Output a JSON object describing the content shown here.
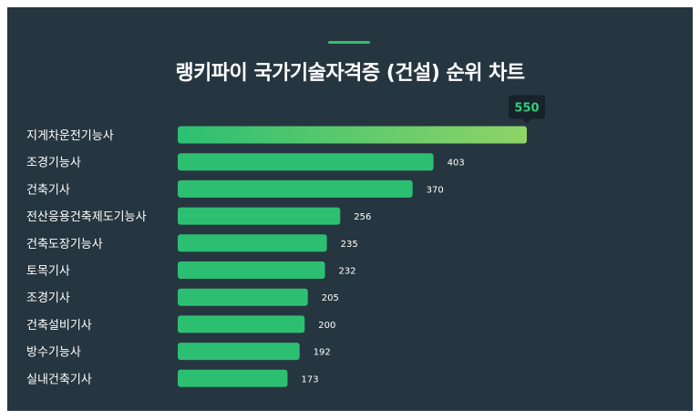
{
  "chart_data": {
    "type": "bar",
    "orientation": "horizontal",
    "title": "랭키파이 국가기술자격증 (건설) 순위 차트",
    "categories": [
      "지게차운전기능사",
      "조경기능사",
      "건축기사",
      "전산응용건축제도기능사",
      "건축도장기능사",
      "토목기사",
      "조경기사",
      "건축설비기사",
      "방수기능사",
      "실내건축기사"
    ],
    "values": [
      550,
      403,
      370,
      256,
      235,
      232,
      205,
      200,
      192,
      173
    ],
    "value_labels": [
      "550",
      "403",
      "370",
      "256",
      "235",
      "232",
      "205",
      "200",
      "192",
      "173"
    ],
    "highlight": {
      "index": 0,
      "label": "550"
    },
    "xlim": [
      0,
      550
    ],
    "grid": false,
    "legend": "none"
  },
  "colors": {
    "background": "#263640",
    "bar": "#2cbf72",
    "bar_highlight_start": "#2cbf72",
    "bar_highlight_end": "#8fd467",
    "accent": "#2fbf71",
    "tooltip_bg": "#17222a",
    "tooltip_text": "#2fd07a",
    "text": "#ffffff"
  }
}
